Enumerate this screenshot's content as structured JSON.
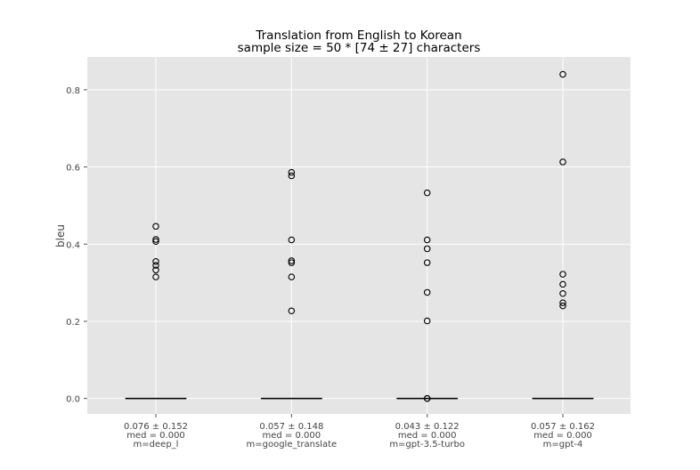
{
  "chart_data": {
    "type": "box",
    "title": "Translation from English to Korean",
    "subtitle": "sample size = 50 * [74 ± 27] characters",
    "xlabel": "",
    "ylabel": "bleu",
    "ylim": [
      -0.04,
      0.885
    ],
    "yticks": [
      "0.0",
      "0.2",
      "0.4",
      "0.6",
      "0.8"
    ],
    "ytick_values": [
      0.0,
      0.2,
      0.4,
      0.6,
      0.8
    ],
    "grid": true,
    "groups": [
      {
        "stats": "0.076 ± 0.152",
        "median_label": "med = 0.000",
        "model_label": "m=deep_l",
        "median": 0.0,
        "q1": 0.0,
        "q3": 0.0,
        "outliers": [
          0.446,
          0.412,
          0.407,
          0.355,
          0.345,
          0.333,
          0.315
        ]
      },
      {
        "stats": "0.057 ± 0.148",
        "median_label": "med = 0.000",
        "model_label": "m=google_translate",
        "median": 0.0,
        "q1": 0.0,
        "q3": 0.0,
        "outliers": [
          0.586,
          0.577,
          0.411,
          0.357,
          0.352,
          0.315,
          0.227
        ]
      },
      {
        "stats": "0.043 ± 0.122",
        "median_label": "med = 0.000",
        "model_label": "m=gpt-3.5-turbo",
        "median": 0.0,
        "q1": 0.0,
        "q3": 0.0,
        "outliers": [
          0.533,
          0.411,
          0.388,
          0.352,
          0.275,
          0.201,
          0.0,
          0.0
        ]
      },
      {
        "stats": "0.057 ± 0.162",
        "median_label": "med = 0.000",
        "model_label": "m=gpt-4",
        "median": 0.0,
        "q1": 0.0,
        "q3": 0.0,
        "outliers": [
          0.84,
          0.613,
          0.322,
          0.296,
          0.272,
          0.248,
          0.24
        ]
      }
    ]
  }
}
